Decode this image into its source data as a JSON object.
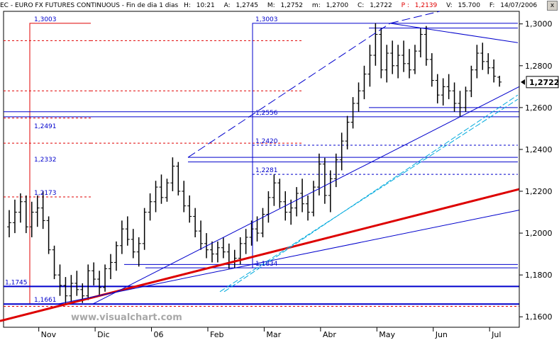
{
  "header": {
    "symbol": "EC - EURO FX FUTURES CONTINUOUS - Fin de dia 1 dias",
    "items": [
      {
        "label": "H:",
        "value": "10:21"
      },
      {
        "label": "A:",
        "value": "1,2745"
      },
      {
        "label": "M:",
        "value": "1,2752"
      },
      {
        "label": "m:",
        "value": "1,2700"
      },
      {
        "label": "C:",
        "value": "1,2722"
      },
      {
        "label": "P :",
        "value": "1,2139"
      },
      {
        "label": "V:",
        "value": "15.700"
      },
      {
        "label": "F:",
        "value": "14/07/2006"
      }
    ],
    "close_glyph": "x"
  },
  "colors": {
    "bar": "#000000",
    "line": "#0000cc",
    "dashed": "#e00000",
    "trend": "#dd0000",
    "channel": "#00aadd",
    "axis": "#000000"
  },
  "watermark": "www.visualchart.com",
  "chart_data": {
    "type": "ohlc",
    "title": "EC - EURO FX FUTURES CONTINUOUS",
    "ylim": [
      1.155,
      1.306
    ],
    "y_ticks": [
      "1,3000",
      "1,2800",
      "1,2600",
      "1,2400",
      "1,2200",
      "1,2000",
      "1,1800",
      "1,1600"
    ],
    "y_tick_values": [
      1.3,
      1.28,
      1.26,
      1.24,
      1.22,
      1.2,
      1.18,
      1.16
    ],
    "x_labels": [
      "Nov",
      "Dic",
      "06",
      "Feb",
      "Mar",
      "Abr",
      "May",
      "Jun",
      "Jul"
    ],
    "x_label_bars": [
      6,
      16,
      26,
      36,
      46,
      56,
      66,
      76,
      86
    ],
    "n_bars": 90,
    "last_price_label": "1,2722",
    "last_price": 1.2722,
    "bars": [
      {
        "o": 1.203,
        "h": 1.211,
        "l": 1.198,
        "c": 1.205
      },
      {
        "o": 1.205,
        "h": 1.216,
        "l": 1.2,
        "c": 1.21
      },
      {
        "o": 1.21,
        "h": 1.219,
        "l": 1.205,
        "c": 1.215
      },
      {
        "o": 1.215,
        "h": 1.218,
        "l": 1.2,
        "c": 1.203
      },
      {
        "o": 1.203,
        "h": 1.215,
        "l": 1.198,
        "c": 1.21
      },
      {
        "o": 1.21,
        "h": 1.218,
        "l": 1.203,
        "c": 1.212
      },
      {
        "o": 1.212,
        "h": 1.22,
        "l": 1.202,
        "c": 1.206
      },
      {
        "o": 1.206,
        "h": 1.208,
        "l": 1.19,
        "c": 1.192
      },
      {
        "o": 1.192,
        "h": 1.194,
        "l": 1.178,
        "c": 1.18
      },
      {
        "o": 1.18,
        "h": 1.185,
        "l": 1.17,
        "c": 1.175
      },
      {
        "o": 1.175,
        "h": 1.179,
        "l": 1.166,
        "c": 1.17
      },
      {
        "o": 1.17,
        "h": 1.18,
        "l": 1.167,
        "c": 1.176
      },
      {
        "o": 1.176,
        "h": 1.182,
        "l": 1.17,
        "c": 1.173
      },
      {
        "o": 1.173,
        "h": 1.176,
        "l": 1.1666,
        "c": 1.17
      },
      {
        "o": 1.17,
        "h": 1.185,
        "l": 1.168,
        "c": 1.182
      },
      {
        "o": 1.182,
        "h": 1.186,
        "l": 1.175,
        "c": 1.178
      },
      {
        "o": 1.178,
        "h": 1.182,
        "l": 1.17,
        "c": 1.174
      },
      {
        "o": 1.174,
        "h": 1.185,
        "l": 1.172,
        "c": 1.183
      },
      {
        "o": 1.183,
        "h": 1.19,
        "l": 1.178,
        "c": 1.186
      },
      {
        "o": 1.186,
        "h": 1.196,
        "l": 1.182,
        "c": 1.194
      },
      {
        "o": 1.194,
        "h": 1.206,
        "l": 1.19,
        "c": 1.202
      },
      {
        "o": 1.202,
        "h": 1.208,
        "l": 1.194,
        "c": 1.197
      },
      {
        "o": 1.197,
        "h": 1.202,
        "l": 1.188,
        "c": 1.191
      },
      {
        "o": 1.191,
        "h": 1.198,
        "l": 1.184,
        "c": 1.195
      },
      {
        "o": 1.195,
        "h": 1.212,
        "l": 1.192,
        "c": 1.21
      },
      {
        "o": 1.21,
        "h": 1.219,
        "l": 1.206,
        "c": 1.215
      },
      {
        "o": 1.215,
        "h": 1.225,
        "l": 1.21,
        "c": 1.222
      },
      {
        "o": 1.222,
        "h": 1.228,
        "l": 1.214,
        "c": 1.217
      },
      {
        "o": 1.217,
        "h": 1.226,
        "l": 1.215,
        "c": 1.224
      },
      {
        "o": 1.224,
        "h": 1.2362,
        "l": 1.22,
        "c": 1.232
      },
      {
        "o": 1.232,
        "h": 1.234,
        "l": 1.218,
        "c": 1.22
      },
      {
        "o": 1.22,
        "h": 1.225,
        "l": 1.21,
        "c": 1.213
      },
      {
        "o": 1.213,
        "h": 1.218,
        "l": 1.205,
        "c": 1.208
      },
      {
        "o": 1.208,
        "h": 1.212,
        "l": 1.198,
        "c": 1.201
      },
      {
        "o": 1.201,
        "h": 1.206,
        "l": 1.192,
        "c": 1.195
      },
      {
        "o": 1.195,
        "h": 1.2,
        "l": 1.188,
        "c": 1.192
      },
      {
        "o": 1.192,
        "h": 1.196,
        "l": 1.186,
        "c": 1.19
      },
      {
        "o": 1.19,
        "h": 1.196,
        "l": 1.186,
        "c": 1.193
      },
      {
        "o": 1.193,
        "h": 1.198,
        "l": 1.188,
        "c": 1.191
      },
      {
        "o": 1.191,
        "h": 1.195,
        "l": 1.183,
        "c": 1.186
      },
      {
        "o": 1.186,
        "h": 1.192,
        "l": 1.1834,
        "c": 1.188
      },
      {
        "o": 1.188,
        "h": 1.198,
        "l": 1.185,
        "c": 1.195
      },
      {
        "o": 1.195,
        "h": 1.202,
        "l": 1.19,
        "c": 1.198
      },
      {
        "o": 1.198,
        "h": 1.206,
        "l": 1.194,
        "c": 1.202
      },
      {
        "o": 1.202,
        "h": 1.208,
        "l": 1.196,
        "c": 1.2
      },
      {
        "o": 1.2,
        "h": 1.212,
        "l": 1.198,
        "c": 1.209
      },
      {
        "o": 1.209,
        "h": 1.22,
        "l": 1.205,
        "c": 1.217
      },
      {
        "o": 1.217,
        "h": 1.228,
        "l": 1.213,
        "c": 1.224
      },
      {
        "o": 1.224,
        "h": 1.226,
        "l": 1.212,
        "c": 1.215
      },
      {
        "o": 1.215,
        "h": 1.22,
        "l": 1.206,
        "c": 1.21
      },
      {
        "o": 1.21,
        "h": 1.216,
        "l": 1.204,
        "c": 1.212
      },
      {
        "o": 1.212,
        "h": 1.222,
        "l": 1.208,
        "c": 1.219
      },
      {
        "o": 1.219,
        "h": 1.226,
        "l": 1.21,
        "c": 1.214
      },
      {
        "o": 1.214,
        "h": 1.218,
        "l": 1.206,
        "c": 1.21
      },
      {
        "o": 1.21,
        "h": 1.225,
        "l": 1.208,
        "c": 1.222
      },
      {
        "o": 1.222,
        "h": 1.238,
        "l": 1.218,
        "c": 1.233
      },
      {
        "o": 1.233,
        "h": 1.236,
        "l": 1.214,
        "c": 1.218
      },
      {
        "o": 1.218,
        "h": 1.23,
        "l": 1.21,
        "c": 1.226
      },
      {
        "o": 1.226,
        "h": 1.238,
        "l": 1.222,
        "c": 1.235
      },
      {
        "o": 1.235,
        "h": 1.248,
        "l": 1.23,
        "c": 1.244
      },
      {
        "o": 1.244,
        "h": 1.256,
        "l": 1.24,
        "c": 1.253
      },
      {
        "o": 1.253,
        "h": 1.265,
        "l": 1.25,
        "c": 1.262
      },
      {
        "o": 1.262,
        "h": 1.272,
        "l": 1.258,
        "c": 1.268
      },
      {
        "o": 1.268,
        "h": 1.28,
        "l": 1.264,
        "c": 1.276
      },
      {
        "o": 1.276,
        "h": 1.29,
        "l": 1.27,
        "c": 1.285
      },
      {
        "o": 1.285,
        "h": 1.3003,
        "l": 1.28,
        "c": 1.295
      },
      {
        "o": 1.295,
        "h": 1.298,
        "l": 1.274,
        "c": 1.278
      },
      {
        "o": 1.278,
        "h": 1.29,
        "l": 1.272,
        "c": 1.286
      },
      {
        "o": 1.286,
        "h": 1.292,
        "l": 1.276,
        "c": 1.28
      },
      {
        "o": 1.28,
        "h": 1.29,
        "l": 1.274,
        "c": 1.285
      },
      {
        "o": 1.285,
        "h": 1.292,
        "l": 1.277,
        "c": 1.281
      },
      {
        "o": 1.281,
        "h": 1.288,
        "l": 1.274,
        "c": 1.278
      },
      {
        "o": 1.278,
        "h": 1.29,
        "l": 1.276,
        "c": 1.287
      },
      {
        "o": 1.287,
        "h": 1.298,
        "l": 1.284,
        "c": 1.295
      },
      {
        "o": 1.295,
        "h": 1.299,
        "l": 1.28,
        "c": 1.283
      },
      {
        "o": 1.283,
        "h": 1.286,
        "l": 1.27,
        "c": 1.273
      },
      {
        "o": 1.273,
        "h": 1.276,
        "l": 1.262,
        "c": 1.266
      },
      {
        "o": 1.266,
        "h": 1.274,
        "l": 1.261,
        "c": 1.27
      },
      {
        "o": 1.27,
        "h": 1.276,
        "l": 1.264,
        "c": 1.268
      },
      {
        "o": 1.268,
        "h": 1.272,
        "l": 1.258,
        "c": 1.262
      },
      {
        "o": 1.262,
        "h": 1.268,
        "l": 1.2556,
        "c": 1.26
      },
      {
        "o": 1.26,
        "h": 1.27,
        "l": 1.258,
        "c": 1.268
      },
      {
        "o": 1.268,
        "h": 1.28,
        "l": 1.265,
        "c": 1.278
      },
      {
        "o": 1.278,
        "h": 1.29,
        "l": 1.274,
        "c": 1.286
      },
      {
        "o": 1.286,
        "h": 1.291,
        "l": 1.278,
        "c": 1.282
      },
      {
        "o": 1.282,
        "h": 1.286,
        "l": 1.276,
        "c": 1.279
      },
      {
        "o": 1.279,
        "h": 1.283,
        "l": 1.272,
        "c": 1.275
      },
      {
        "o": 1.2745,
        "h": 1.2752,
        "l": 1.27,
        "c": 1.2722
      }
    ],
    "level_lines": [
      {
        "label": "1,2556",
        "value": 1.2556
      },
      {
        "label": "1,1834",
        "value": 1.1834
      },
      {
        "label": "1,1745",
        "value": 1.1745
      },
      {
        "label": "1,1661",
        "value": 1.1661
      }
    ],
    "fib_labels_left": [
      {
        "label": "1,3003",
        "value": 1.3003
      },
      {
        "label": "1,2491",
        "value": 1.2491
      },
      {
        "label": "1,2332",
        "value": 1.2332
      },
      {
        "label": "1,2173",
        "value": 1.2173
      },
      {
        "label": "1,1745",
        "value": 1.1745
      },
      {
        "label": "1,1661",
        "value": 1.1661
      }
    ],
    "fib_labels_right": [
      {
        "label": "1,3003",
        "value": 1.3003
      },
      {
        "label": "1,2556",
        "value": 1.2556
      },
      {
        "label": "1,2420",
        "value": 1.242
      },
      {
        "label": "1,2281",
        "value": 1.2281
      },
      {
        "label": "1,1834",
        "value": 1.1834
      }
    ]
  }
}
